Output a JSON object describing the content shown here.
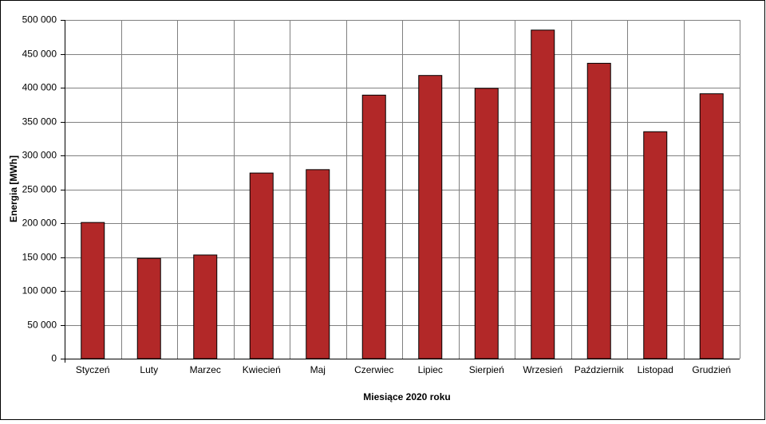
{
  "chart_data": {
    "type": "bar",
    "x_label": "Miesiące 2020  roku",
    "y_label": "Energia [MWh]",
    "categories": [
      "Styczeń",
      "Luty",
      "Marzec",
      "Kwiecień",
      "Maj",
      "Czerwiec",
      "Lipiec",
      "Sierpień",
      "Wrzesień",
      "Październik",
      "Listopad",
      "Grudzień"
    ],
    "values": [
      201000,
      148000,
      153000,
      274000,
      279000,
      389000,
      418000,
      399000,
      485000,
      436000,
      335000,
      391000
    ],
    "color": "#b22828",
    "ylim": [
      0,
      500000
    ],
    "yticks": [
      0,
      {
        "value": 50000,
        "label": "50 000"
      },
      {
        "value": 100000,
        "label": "100 000"
      },
      {
        "value": 150000,
        "label": "150 000"
      },
      {
        "value": 200000,
        "label": "200 000"
      },
      {
        "value": 250000,
        "label": "250 000"
      },
      {
        "value": 300000,
        "label": "300 000"
      },
      {
        "value": 350000,
        "label": "350 000"
      },
      {
        "value": 400000,
        "label": "400 000"
      },
      {
        "value": 450000,
        "label": "450 000"
      },
      {
        "value": 500000,
        "label": "500 000"
      }
    ],
    "grid": true
  }
}
